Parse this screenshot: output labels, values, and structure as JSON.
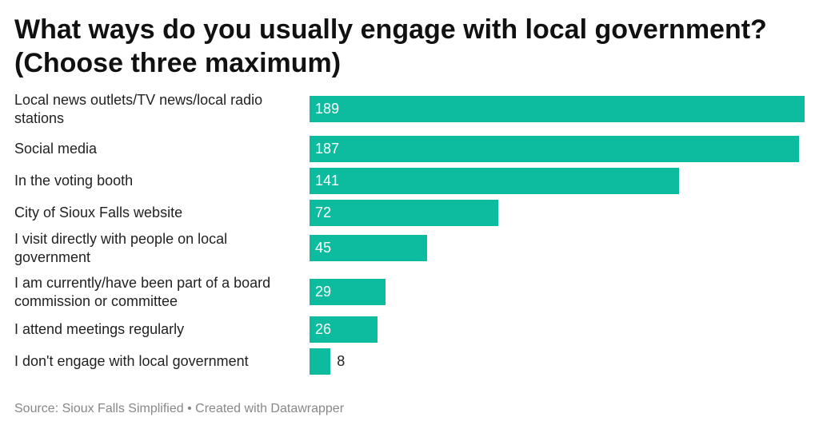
{
  "title": "What ways do you usually engage with local government? (Choose three maximum)",
  "footer": {
    "source": "Source: Sioux Falls Simplified",
    "separator": "•",
    "credit": "Created with Datawrapper"
  },
  "colors": {
    "bar": "#0dbc9f",
    "label_inside": "#ffffff",
    "label_outside": "#222222"
  },
  "chart_data": {
    "type": "bar",
    "orientation": "horizontal",
    "title": "What ways do you usually engage with local government? (Choose three maximum)",
    "categories": [
      "Local news outlets/TV news/local radio stations",
      "Social media",
      "In the voting booth",
      "City of Sioux Falls website",
      "I visit directly with people on local government",
      "I am currently/have been part of a board commission or committee",
      "I attend meetings regularly",
      "I don't engage with local government"
    ],
    "values": [
      189,
      187,
      141,
      72,
      45,
      29,
      26,
      8
    ],
    "xlim": [
      0,
      189
    ],
    "grid": false,
    "legend": "none"
  }
}
